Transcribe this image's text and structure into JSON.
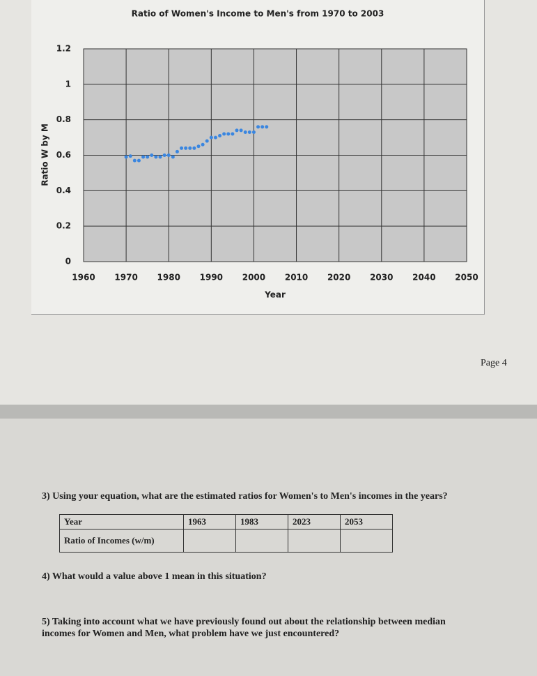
{
  "chart_data": {
    "type": "scatter",
    "title": "Ratio of Women's Income to Men's from 1970 to 2003",
    "x_label": "Year",
    "y_label": "Ratio W by M",
    "x": [
      1970,
      1971,
      1972,
      1973,
      1974,
      1975,
      1976,
      1977,
      1978,
      1979,
      1980,
      1981,
      1982,
      1983,
      1984,
      1985,
      1986,
      1987,
      1988,
      1989,
      1990,
      1991,
      1992,
      1993,
      1994,
      1995,
      1996,
      1997,
      1998,
      1999,
      2000,
      2001,
      2002,
      2003
    ],
    "values": [
      0.59,
      0.595,
      0.57,
      0.57,
      0.59,
      0.59,
      0.6,
      0.59,
      0.59,
      0.6,
      0.6,
      0.59,
      0.62,
      0.64,
      0.64,
      0.64,
      0.64,
      0.65,
      0.66,
      0.68,
      0.7,
      0.7,
      0.71,
      0.72,
      0.72,
      0.72,
      0.74,
      0.74,
      0.73,
      0.73,
      0.73,
      0.76,
      0.76,
      0.76
    ],
    "color": "#3a86e0",
    "xlim": [
      1960,
      2050
    ],
    "xticks": [
      1960,
      1970,
      1980,
      1990,
      2000,
      2010,
      2020,
      2030,
      2040,
      2050
    ],
    "ylim": [
      0,
      1.2
    ],
    "yticks": [
      0,
      0.2,
      0.4,
      0.6,
      0.8,
      1,
      1.2
    ],
    "grid": true
  },
  "page_label": "Page 4",
  "question3": {
    "number": "3)",
    "text": "Using your equation, what are the estimated ratios for Women's to Men's incomes in the years?",
    "table": {
      "header": [
        "Year",
        "1963",
        "1983",
        "2023",
        "2053"
      ],
      "row_label": "Ratio of Incomes (w/m)"
    }
  },
  "question4": {
    "number": "4)",
    "text": "What would a value above 1 mean in this situation?"
  },
  "question5": {
    "number": "5)",
    "text": "Taking into account what we have previously found out about the relationship between median incomes for Women and Men, what problem have we just encountered?"
  }
}
